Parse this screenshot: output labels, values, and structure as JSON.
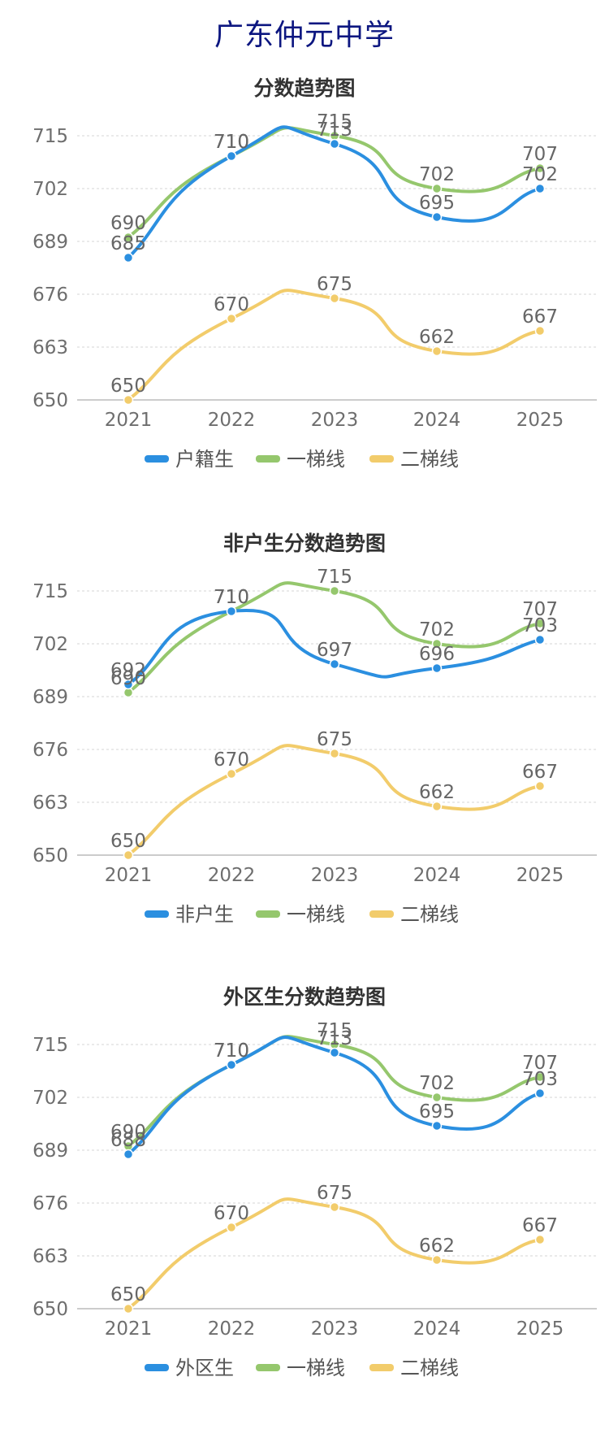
{
  "page_title": "广东仲元中学",
  "colors": {
    "blue": "#2b8fe0",
    "green": "#95c76d",
    "yellow": "#f2cc6b"
  },
  "chart_data": [
    {
      "type": "line",
      "title": "分数趋势图",
      "categories": [
        "2021",
        "2022",
        "2023",
        "2024",
        "2025"
      ],
      "ylim": [
        650,
        715
      ],
      "yticks": [
        "650",
        "663",
        "676",
        "689",
        "702",
        "715"
      ],
      "grid": true,
      "legend_position": "bottom-center",
      "series": [
        {
          "name": "户籍生",
          "color": "#2b8fe0",
          "values": [
            685,
            710,
            713,
            695,
            702
          ]
        },
        {
          "name": "一梯线",
          "color": "#95c76d",
          "values": [
            690,
            710,
            715,
            702,
            707
          ]
        },
        {
          "name": "二梯线",
          "color": "#f2cc6b",
          "values": [
            650,
            670,
            675,
            662,
            667
          ]
        }
      ]
    },
    {
      "type": "line",
      "title": "非户生分数趋势图",
      "categories": [
        "2021",
        "2022",
        "2023",
        "2024",
        "2025"
      ],
      "ylim": [
        650,
        715
      ],
      "yticks": [
        "650",
        "663",
        "676",
        "689",
        "702",
        "715"
      ],
      "grid": true,
      "legend_position": "bottom-center",
      "series": [
        {
          "name": "非户生",
          "color": "#2b8fe0",
          "values": [
            692,
            710,
            697,
            696,
            703
          ]
        },
        {
          "name": "一梯线",
          "color": "#95c76d",
          "values": [
            690,
            710,
            715,
            702,
            707
          ]
        },
        {
          "name": "二梯线",
          "color": "#f2cc6b",
          "values": [
            650,
            670,
            675,
            662,
            667
          ]
        }
      ]
    },
    {
      "type": "line",
      "title": "外区生分数趋势图",
      "categories": [
        "2021",
        "2022",
        "2023",
        "2024",
        "2025"
      ],
      "ylim": [
        650,
        715
      ],
      "yticks": [
        "650",
        "663",
        "676",
        "689",
        "702",
        "715"
      ],
      "grid": true,
      "legend_position": "bottom-center",
      "series": [
        {
          "name": "外区生",
          "color": "#2b8fe0",
          "values": [
            688,
            710,
            713,
            695,
            703
          ]
        },
        {
          "name": "一梯线",
          "color": "#95c76d",
          "values": [
            690,
            710,
            715,
            702,
            707
          ]
        },
        {
          "name": "二梯线",
          "color": "#f2cc6b",
          "values": [
            650,
            670,
            675,
            662,
            667
          ]
        }
      ]
    }
  ]
}
